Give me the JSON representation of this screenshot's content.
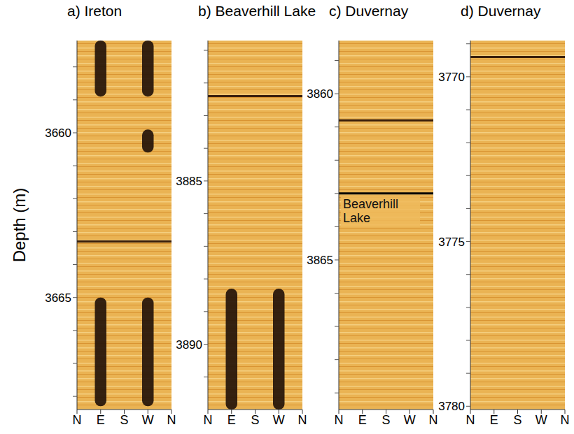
{
  "ylabel": "Depth (m)",
  "chart_data": [
    {
      "type": "image_log",
      "panel": "a)",
      "title": "Ireton",
      "xlim": [
        0,
        360
      ],
      "xticks": [
        {
          "value": 0,
          "label": "N"
        },
        {
          "value": 90,
          "label": "E"
        },
        {
          "value": 180,
          "label": "S"
        },
        {
          "value": 270,
          "label": "W"
        },
        {
          "value": 360,
          "label": "N"
        }
      ],
      "ylim": [
        3657.2,
        3668.4
      ],
      "yticks": [
        3660,
        3665
      ],
      "minor_ticks": [
        3658,
        3659,
        3661,
        3662,
        3663,
        3664,
        3666,
        3667,
        3668
      ],
      "breakouts": [
        {
          "top": 3657.2,
          "bottom": 3658.9,
          "azimuth": 90
        },
        {
          "top": 3657.2,
          "bottom": 3658.9,
          "azimuth": 270
        },
        {
          "top": 3659.9,
          "bottom": 3660.6,
          "azimuth": 270
        },
        {
          "top": 3665.0,
          "bottom": 3668.3,
          "azimuth": 90
        },
        {
          "top": 3665.0,
          "bottom": 3668.3,
          "azimuth": 270
        }
      ],
      "dark_beds": [
        3663.3
      ]
    },
    {
      "type": "image_log",
      "panel": "b)",
      "title": "Beaverhill Lake",
      "xlim": [
        0,
        360
      ],
      "xticks": [
        {
          "value": 0,
          "label": "N"
        },
        {
          "value": 90,
          "label": "E"
        },
        {
          "value": 180,
          "label": "S"
        },
        {
          "value": 270,
          "label": "W"
        },
        {
          "value": 360,
          "label": "N"
        }
      ],
      "ylim": [
        3880.7,
        3892.0
      ],
      "yticks": [
        3885,
        3890
      ],
      "minor_ticks": [
        3881,
        3882,
        3883,
        3884,
        3886,
        3887,
        3888,
        3889,
        3891
      ],
      "breakouts": [
        {
          "top": 3888.3,
          "bottom": 3892.0,
          "azimuth": 90
        },
        {
          "top": 3888.3,
          "bottom": 3892.0,
          "azimuth": 270
        }
      ],
      "dark_beds": [
        3882.4
      ]
    },
    {
      "type": "image_log",
      "panel": "c)",
      "title": "Duvernay",
      "xlim": [
        0,
        360
      ],
      "xticks": [
        {
          "value": 0,
          "label": "N"
        },
        {
          "value": 90,
          "label": "E"
        },
        {
          "value": 180,
          "label": "S"
        },
        {
          "value": 270,
          "label": "W"
        },
        {
          "value": 360,
          "label": "N"
        }
      ],
      "ylim": [
        3858.4,
        3869.5
      ],
      "yticks": [
        3860,
        3865
      ],
      "minor_ticks": [
        3859,
        3861,
        3862,
        3863,
        3864,
        3866,
        3867,
        3868,
        3869
      ],
      "breakouts": [],
      "dark_beds": [
        3860.8
      ],
      "annotations": [
        {
          "text": "Beaverhill Lake",
          "depth": 3863.0
        }
      ]
    },
    {
      "type": "image_log",
      "panel": "d)",
      "title": "Duvernay",
      "xlim": [
        0,
        360
      ],
      "xticks": [
        {
          "value": 0,
          "label": "N"
        },
        {
          "value": 90,
          "label": "E"
        },
        {
          "value": 180,
          "label": "S"
        },
        {
          "value": 270,
          "label": "W"
        },
        {
          "value": 360,
          "label": "N"
        }
      ],
      "ylim": [
        3768.9,
        3780.1
      ],
      "yticks": [
        3770,
        3775,
        3780
      ],
      "minor_ticks": [
        3769,
        3771,
        3772,
        3773,
        3774,
        3776,
        3777,
        3778,
        3779
      ],
      "breakouts": [],
      "dark_beds": [
        3769.4
      ]
    }
  ]
}
